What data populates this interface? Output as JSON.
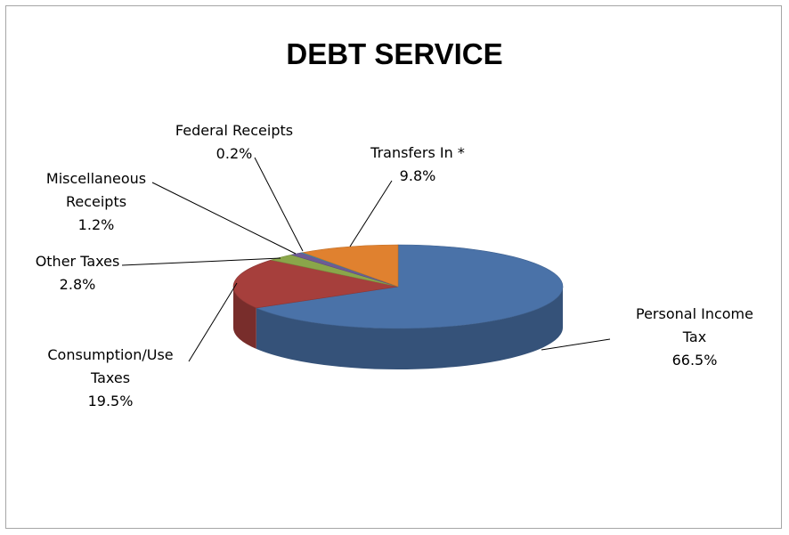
{
  "chart_data": {
    "type": "pie",
    "title": "DEBT SERVICE",
    "slices": [
      {
        "name": "Personal Income Tax",
        "label_lines": [
          "Personal Income",
          "Tax"
        ],
        "value": 66.5,
        "value_label": "66.5%",
        "color": "#4a72a8"
      },
      {
        "name": "Consumption/Use Taxes",
        "label_lines": [
          "Consumption/Use",
          "Taxes"
        ],
        "value": 19.5,
        "value_label": "19.5%",
        "color": "#a63f3c"
      },
      {
        "name": "Other Taxes",
        "label_lines": [
          "Other Taxes"
        ],
        "value": 2.8,
        "value_label": "2.8%",
        "color": "#8aa64a"
      },
      {
        "name": "Miscellaneous Receipts",
        "label_lines": [
          "Miscellaneous",
          "Receipts"
        ],
        "value": 1.2,
        "value_label": "1.2%",
        "color": "#6e5a96"
      },
      {
        "name": "Federal Receipts",
        "label_lines": [
          "Federal Receipts"
        ],
        "value": 0.2,
        "value_label": "0.2%",
        "color": "#3d9ab8"
      },
      {
        "name": "Transfers In *",
        "label_lines": [
          "Transfers In *"
        ],
        "value": 9.8,
        "value_label": "9.8%",
        "color": "#e0812f"
      }
    ]
  }
}
